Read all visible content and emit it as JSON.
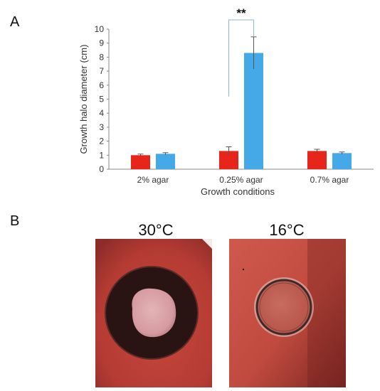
{
  "panels": {
    "a_label": "A",
    "b_label": "B"
  },
  "chart_data": {
    "type": "bar",
    "categories": [
      "2% agar",
      "0.25% agar",
      "0.7% agar"
    ],
    "series": [
      {
        "color": "#e8251a",
        "values": [
          1.0,
          1.3,
          1.3
        ],
        "errors": [
          0.08,
          0.3,
          0.12
        ]
      },
      {
        "color": "#44a9e6",
        "values": [
          1.1,
          8.3,
          1.15
        ],
        "errors": [
          0.08,
          1.15,
          0.08
        ]
      }
    ],
    "title": "",
    "xlabel": "Growth conditions",
    "ylabel": "Growth halo diameter (cm)",
    "ylim": [
      0,
      10
    ],
    "yticks": [
      0,
      1,
      2,
      3,
      4,
      5,
      6,
      7,
      8,
      9,
      10
    ],
    "grid": false,
    "annotation": {
      "text": "**",
      "between": [
        "0.25% agar series 1",
        "0.25% agar series 2"
      ]
    }
  },
  "photos": {
    "left": {
      "label": "30°C",
      "agar_color": "#c4443a",
      "halo_color": "#2b1414",
      "colony_color": "#d9a3a6"
    },
    "right": {
      "label": "16°C",
      "agar_color": "#c04a3e",
      "ring_color": "#3a2a2a",
      "colony_color": "#c06458"
    }
  }
}
